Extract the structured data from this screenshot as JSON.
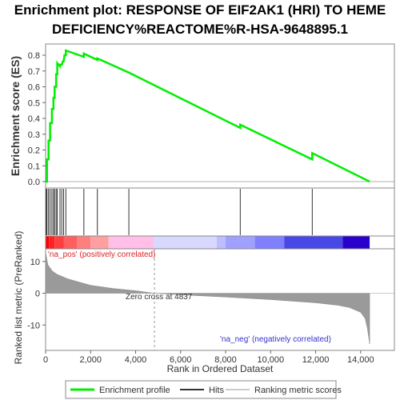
{
  "title_line1": "Enrichment plot: RESPONSE OF EIF2AK1 (HRI) TO HEME",
  "title_line2": "DEFICIENCY%REACTOME%R-HSA-9648895.1",
  "chart_data": {
    "type": "line",
    "es_panel": {
      "ylabel": "Enrichment score (ES)",
      "ylim": [
        0,
        0.85
      ],
      "yticks": [
        "0.0",
        "0.1",
        "0.2",
        "0.3",
        "0.4",
        "0.5",
        "0.6",
        "0.7",
        "0.8"
      ],
      "series": [
        {
          "name": "Enrichment profile",
          "color": "#00ee00",
          "x": [
            0,
            30,
            60,
            60,
            130,
            130,
            200,
            200,
            280,
            280,
            350,
            350,
            400,
            400,
            470,
            470,
            520,
            520,
            640,
            640,
            720,
            760,
            800,
            840,
            900,
            900,
            1700,
            1700,
            2300,
            2300,
            3700,
            3700,
            8650,
            8650,
            11850,
            11850,
            14400
          ],
          "y": [
            0.0,
            0.0,
            0.0,
            0.14,
            0.14,
            0.26,
            0.26,
            0.37,
            0.37,
            0.46,
            0.46,
            0.53,
            0.53,
            0.6,
            0.6,
            0.68,
            0.68,
            0.75,
            0.73,
            0.74,
            0.74,
            0.76,
            0.76,
            0.8,
            0.8,
            0.83,
            0.79,
            0.81,
            0.77,
            0.78,
            0.69,
            0.69,
            0.34,
            0.36,
            0.14,
            0.18,
            0.0
          ]
        }
      ]
    },
    "hits": [
      30,
      60,
      130,
      200,
      280,
      350,
      400,
      470,
      520,
      640,
      720,
      800,
      900,
      1700,
      2300,
      3700,
      8650,
      11850
    ],
    "ranked_panel": {
      "ylabel": "Ranked list metric (PreRanked)",
      "xlabel": "Rank in Ordered Dataset",
      "xlim": [
        0,
        15500
      ],
      "ylim": [
        -18,
        14
      ],
      "yticks": [
        "10",
        "0",
        "-10"
      ],
      "xticks": [
        "0",
        "2,000",
        "4,000",
        "6,000",
        "8,000",
        "10,000",
        "12,000",
        "14,000"
      ],
      "metric_x": [
        0,
        100,
        300,
        500,
        1000,
        1500,
        2000,
        3000,
        4000,
        4837,
        6000,
        8000,
        10000,
        12000,
        13000,
        13500,
        14000,
        14200,
        14300,
        14400
      ],
      "metric_y": [
        13,
        9,
        7,
        6,
        4.5,
        3.5,
        2.5,
        1.5,
        0.8,
        0,
        -0.5,
        -1.2,
        -2,
        -3,
        -3.8,
        -4.5,
        -6,
        -8,
        -11,
        -16
      ],
      "zero_cross_label": "Zero cross at 4837",
      "zero_cross_x": 4837,
      "pos_label": "'na_pos' (positively correlated)",
      "neg_label": "'na_neg' (negatively correlated)"
    },
    "heatbar": {
      "x_breaks": [
        0,
        150,
        400,
        800,
        1400,
        2000,
        2800,
        4800,
        7600,
        8000,
        9300,
        10600,
        13200,
        14400
      ],
      "colors": [
        "#ff0000",
        "#ff2222",
        "#ff3f3f",
        "#ff5f5f",
        "#ff7f7f",
        "#ff9f9f",
        "#ffbfe8",
        "#d8d8ff",
        "#bdbdff",
        "#a0a0ff",
        "#7f7fff",
        "#4848e8",
        "#2a00cc"
      ]
    },
    "legend": [
      {
        "label": "Enrichment profile",
        "color": "#00ee00"
      },
      {
        "label": "Hits",
        "color": "#333333"
      },
      {
        "label": "Ranking metric scores",
        "color": "#cccccc"
      }
    ]
  }
}
